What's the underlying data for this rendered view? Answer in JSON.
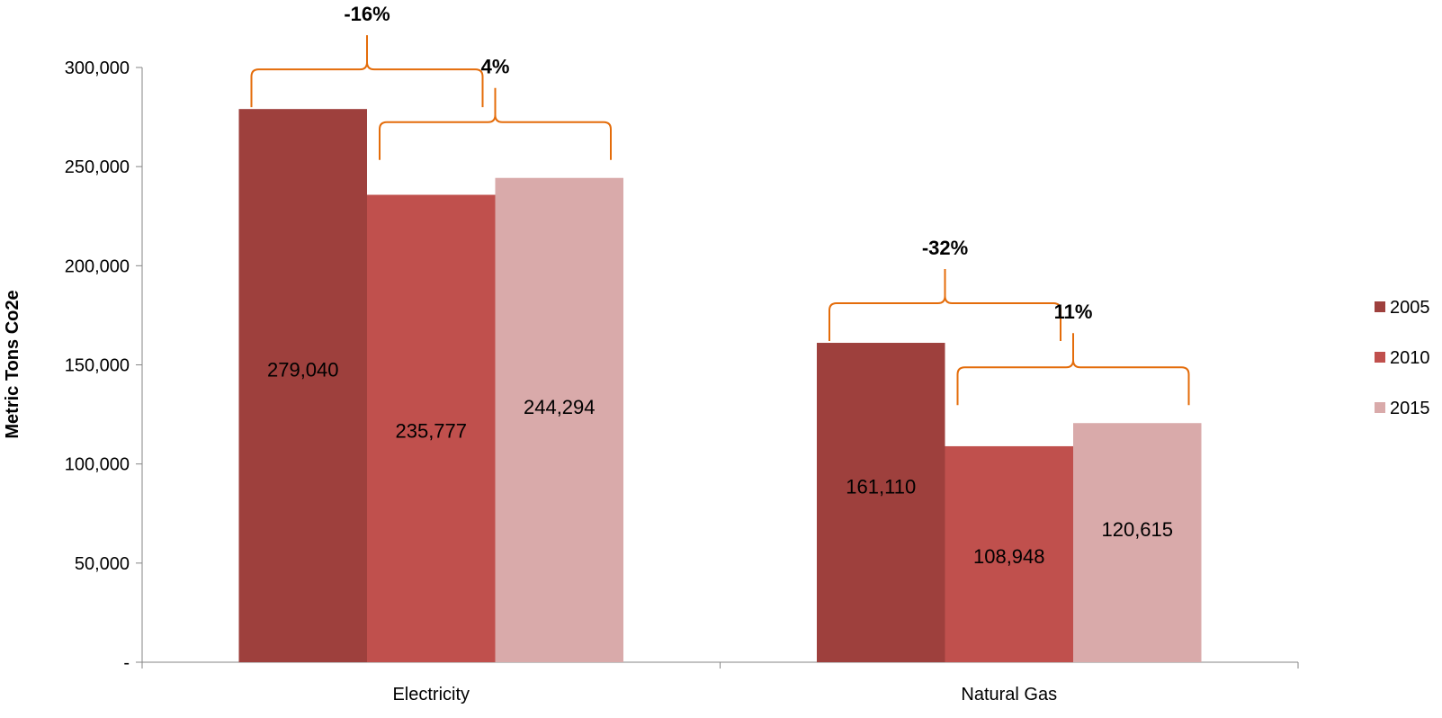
{
  "chart_data": {
    "type": "bar",
    "title": "",
    "xlabel": "",
    "ylabel": "Metric Tons Co2e",
    "ylim": [
      0,
      300000
    ],
    "y_ticks": [
      {
        "value": 0,
        "label": "-"
      },
      {
        "value": 50000,
        "label": "50,000"
      },
      {
        "value": 100000,
        "label": "100,000"
      },
      {
        "value": 150000,
        "label": "150,000"
      },
      {
        "value": 200000,
        "label": "200,000"
      },
      {
        "value": 250000,
        "label": "250,000"
      },
      {
        "value": 300000,
        "label": "300,000"
      }
    ],
    "grid": false,
    "legend_position": "right",
    "categories": [
      "Electricity",
      "Natural Gas"
    ],
    "series": [
      {
        "name": "2005",
        "color": "#9E403D",
        "values": [
          279040,
          161110
        ],
        "labels": [
          "279,040",
          "161,110"
        ]
      },
      {
        "name": "2010",
        "color": "#C0504D",
        "values": [
          235777,
          108948
        ],
        "labels": [
          "235,777",
          "108,948"
        ]
      },
      {
        "name": "2015",
        "color": "#D9AAAA",
        "values": [
          244294,
          120615
        ],
        "labels": [
          "244,294",
          "120,615"
        ]
      }
    ],
    "annotations": [
      {
        "category": "Electricity",
        "from_series": 0,
        "to_series": 1,
        "text": "-16%"
      },
      {
        "category": "Electricity",
        "from_series": 1,
        "to_series": 2,
        "text": "4%"
      },
      {
        "category": "Natural Gas",
        "from_series": 0,
        "to_series": 1,
        "text": "-32%"
      },
      {
        "category": "Natural Gas",
        "from_series": 1,
        "to_series": 2,
        "text": "11%"
      }
    ],
    "bracket_color": "#E46C0A"
  }
}
